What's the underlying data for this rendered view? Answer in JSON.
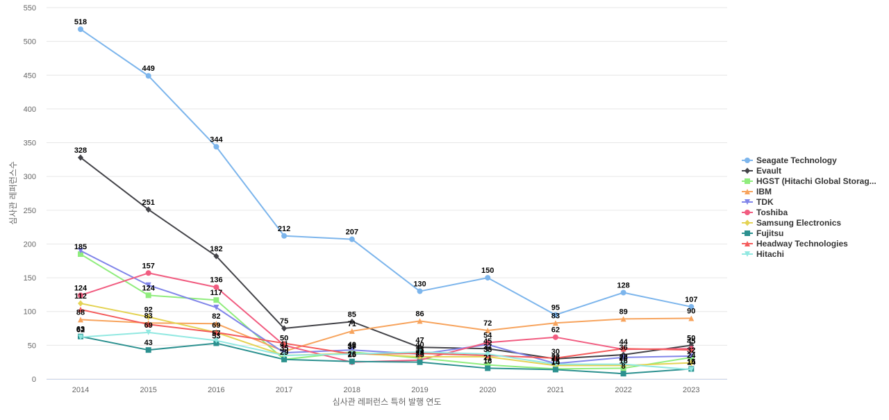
{
  "chart_data": {
    "type": "line",
    "title": "",
    "xlabel": "심사관 레퍼런스 특허 발행 연도",
    "ylabel": "심사관 레퍼런스수",
    "ylim": [
      0,
      550
    ],
    "y_ticks": [
      0,
      50,
      100,
      150,
      200,
      250,
      300,
      350,
      400,
      450,
      500,
      550
    ],
    "grid": true,
    "legend_position": "right",
    "categories": [
      "2014",
      "2015",
      "2016",
      "2017",
      "2018",
      "2019",
      "2020",
      "2021",
      "2022",
      "2023"
    ],
    "series": [
      {
        "name": "Seagate Technology",
        "color": "#7cb5ec",
        "marker": "circle",
        "values": [
          518,
          449,
          344,
          212,
          207,
          130,
          150,
          95,
          128,
          107
        ],
        "show_labels": true
      },
      {
        "name": "Evault",
        "color": "#434348",
        "marker": "diamond",
        "values": [
          328,
          251,
          182,
          75,
          85,
          47,
          45,
          30,
          36,
          50
        ],
        "show_labels": true
      },
      {
        "name": "HGST (Hitachi Global Storag...",
        "color": "#90ed7d",
        "marker": "square",
        "values": [
          185,
          124,
          117,
          29,
          40,
          31,
          21,
          15,
          16,
          32
        ],
        "show_labels": true
      },
      {
        "name": "IBM",
        "color": "#f7a35c",
        "marker": "triangle",
        "values": [
          88,
          83,
          82,
          41,
          71,
          86,
          72,
          83,
          89,
          90
        ],
        "show_labels": true
      },
      {
        "name": "TDK",
        "color": "#8085e9",
        "marker": "triangle-down",
        "values": [
          190,
          139,
          106,
          39,
          43,
          37,
          51,
          23,
          32,
          34
        ],
        "show_labels": false
      },
      {
        "name": "Toshiba",
        "color": "#f15c80",
        "marker": "circle",
        "values": [
          124,
          157,
          136,
          50,
          25,
          28,
          54,
          62,
          44,
          45
        ],
        "show_labels": true
      },
      {
        "name": "Samsung Electronics",
        "color": "#e4d354",
        "marker": "diamond",
        "values": [
          112,
          92,
          69,
          35,
          38,
          33,
          33,
          20,
          20,
          24
        ],
        "show_labels": true
      },
      {
        "name": "Fujitsu",
        "color": "#2b908f",
        "marker": "square",
        "values": [
          63,
          43,
          53,
          29,
          26,
          25,
          16,
          14,
          8,
          15
        ],
        "show_labels": true
      },
      {
        "name": "Headway Technologies",
        "color": "#f45b5b",
        "marker": "triangle",
        "values": [
          103,
          81,
          69,
          53,
          37,
          38,
          35,
          31,
          45,
          43
        ],
        "show_labels": false
      },
      {
        "name": "Hitachi",
        "color": "#91e8e1",
        "marker": "triangle-down",
        "values": [
          62,
          69,
          57,
          35,
          37,
          40,
          37,
          22,
          22,
          14
        ],
        "show_labels": true
      }
    ]
  }
}
